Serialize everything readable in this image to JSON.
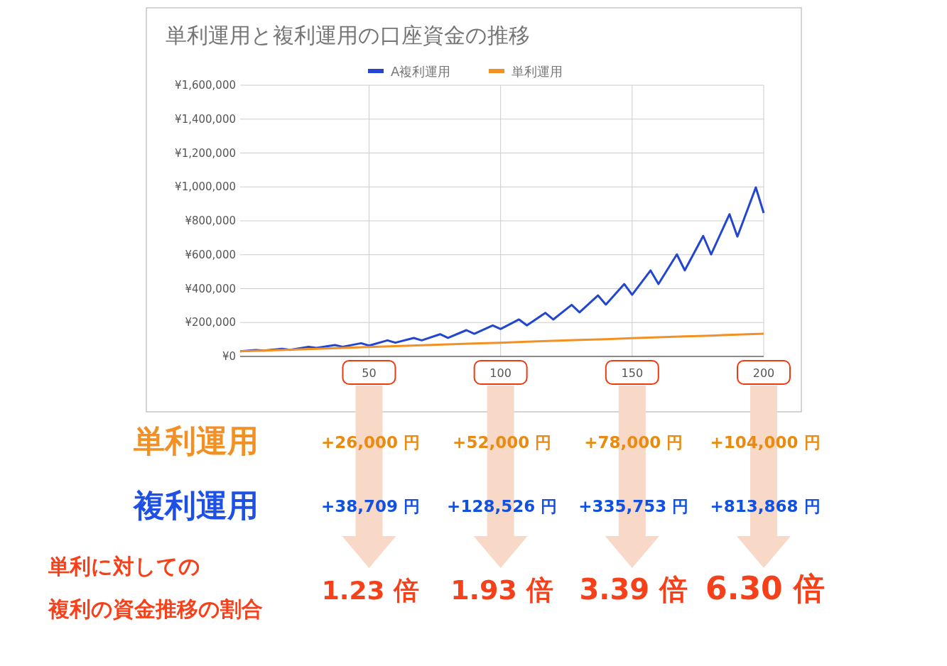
{
  "chart_data": {
    "type": "line",
    "title": "単利運用と複利運用の口座資金の推移",
    "legend": "top",
    "grid": true,
    "xlim": [
      1,
      200
    ],
    "xticks": [
      50,
      100,
      150,
      200
    ],
    "ylim": [
      0,
      1600000
    ],
    "yticks": [
      {
        "value": 0,
        "label": "¥0"
      },
      {
        "value": 200000,
        "label": "¥200,000"
      },
      {
        "value": 400000,
        "label": "¥400,000"
      },
      {
        "value": 600000,
        "label": "¥600,000"
      },
      {
        "value": 800000,
        "label": "¥800,000"
      },
      {
        "value": 1000000,
        "label": "¥1,000,000"
      },
      {
        "value": 1200000,
        "label": "¥1,200,000"
      },
      {
        "value": 1400000,
        "label": "¥1,400,000"
      },
      {
        "value": 1600000,
        "label": "¥1,600,000"
      }
    ],
    "series": [
      {
        "name": "A複利運用",
        "color": "#2346d0",
        "x": [
          1,
          7,
          10,
          17,
          20,
          27,
          30,
          37,
          40,
          47,
          50,
          57,
          60,
          67,
          70,
          77,
          80,
          87,
          90,
          97,
          100,
          107,
          110,
          117,
          120,
          127,
          130,
          137,
          140,
          147,
          150,
          157,
          160,
          167,
          170,
          177,
          180,
          187,
          190,
          197,
          200
        ],
        "values": [
          30000,
          38000,
          35000,
          45000,
          39000,
          57000,
          50000,
          67000,
          57000,
          78000,
          64000,
          95000,
          81000,
          109000,
          95000,
          131000,
          109000,
          155000,
          134000,
          183000,
          162000,
          218000,
          183000,
          257000,
          218000,
          304000,
          260000,
          360000,
          306000,
          427000,
          364000,
          507000,
          427000,
          602000,
          508000,
          711000,
          602000,
          839000,
          707000,
          997000,
          846000
        ]
      },
      {
        "name": "単利運用",
        "color": "#f39023",
        "x": [
          1,
          10,
          20,
          30,
          40,
          50,
          60,
          70,
          80,
          90,
          100,
          110,
          120,
          130,
          140,
          150,
          160,
          170,
          180,
          190,
          200
        ],
        "values": [
          30000,
          35000,
          40000,
          45000,
          50000,
          56000,
          61000,
          66000,
          71000,
          76000,
          81000,
          87000,
          92000,
          97000,
          102000,
          108000,
          113000,
          118000,
          123000,
          129000,
          134000
        ]
      }
    ],
    "annotations": [
      "単利運用",
      "+26,000 円",
      "+52,000 円",
      "+78,000 円",
      "+104,000 円",
      "複利運用",
      "+38,709 円",
      "+128,526 円",
      "+335,753 円",
      "+813,868 円",
      "単利に対しての",
      "複利の資金推移の割合",
      "1.23 倍",
      "1.93 倍",
      "3.39 倍",
      "6.30 倍"
    ]
  }
}
